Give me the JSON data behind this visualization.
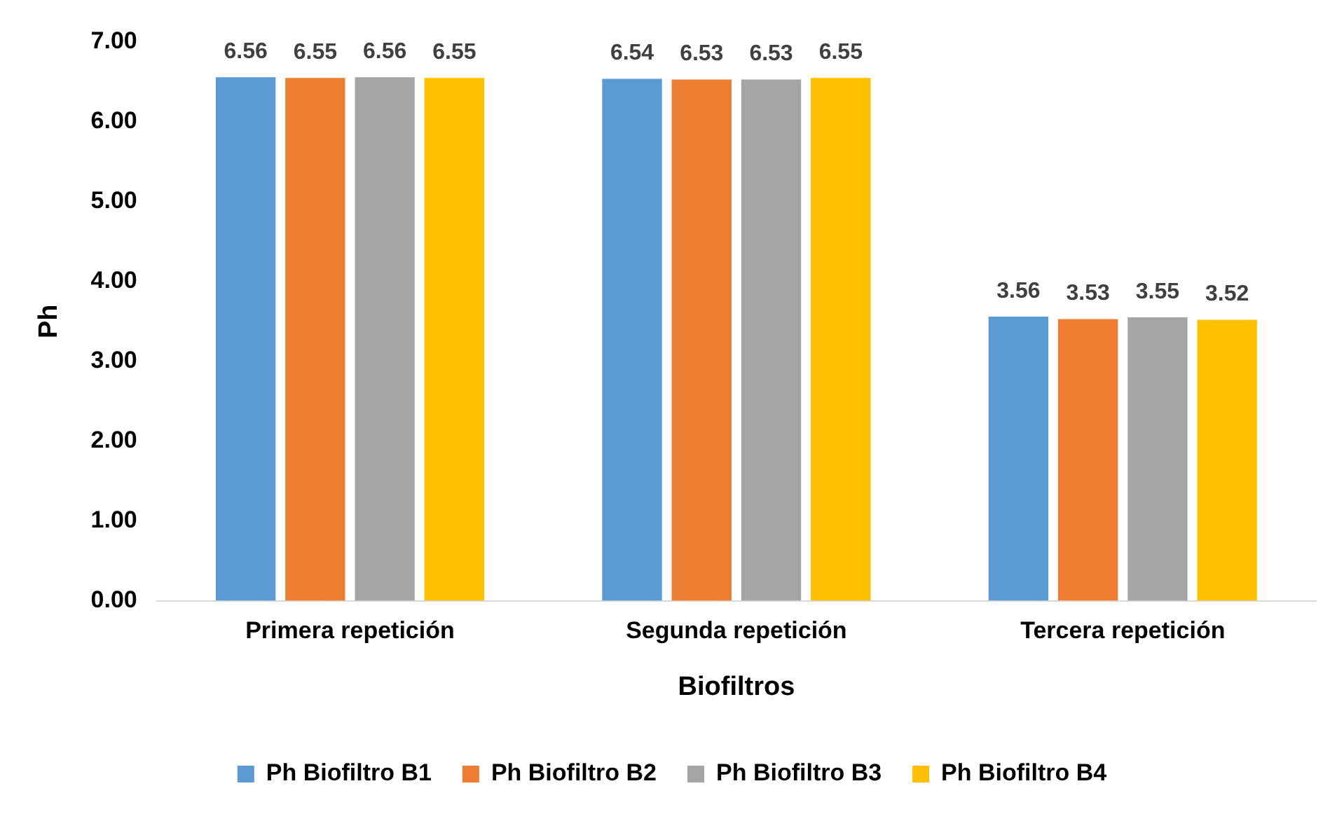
{
  "chart_data": {
    "type": "bar",
    "xlabel": "Biofiltros",
    "ylabel": "Ph",
    "categories": [
      "Primera repetición",
      "Segunda repetición",
      "Tercera repetición"
    ],
    "series": [
      {
        "name": "Ph Biofiltro B1",
        "color": "#5b9bd5",
        "values": [
          6.56,
          6.54,
          3.56
        ]
      },
      {
        "name": "Ph Biofiltro B2",
        "color": "#ed7d31",
        "values": [
          6.55,
          6.53,
          3.53
        ]
      },
      {
        "name": "Ph Biofiltro B3",
        "color": "#a5a5a5",
        "values": [
          6.56,
          6.53,
          3.55
        ]
      },
      {
        "name": "Ph Biofiltro B4",
        "color": "#ffc000",
        "values": [
          6.55,
          6.55,
          3.52
        ]
      }
    ],
    "ylim": [
      0,
      7
    ],
    "yticks": [
      {
        "value": 0,
        "label": "0.00"
      },
      {
        "value": 1,
        "label": "1.00"
      },
      {
        "value": 2,
        "label": "2.00"
      },
      {
        "value": 3,
        "label": "3.00"
      },
      {
        "value": 4,
        "label": "4.00"
      },
      {
        "value": 5,
        "label": "5.00"
      },
      {
        "value": 6,
        "label": "6.00"
      },
      {
        "value": 7,
        "label": "7.00"
      }
    ],
    "grid": false,
    "legend": "bottom",
    "data_labels": true
  }
}
